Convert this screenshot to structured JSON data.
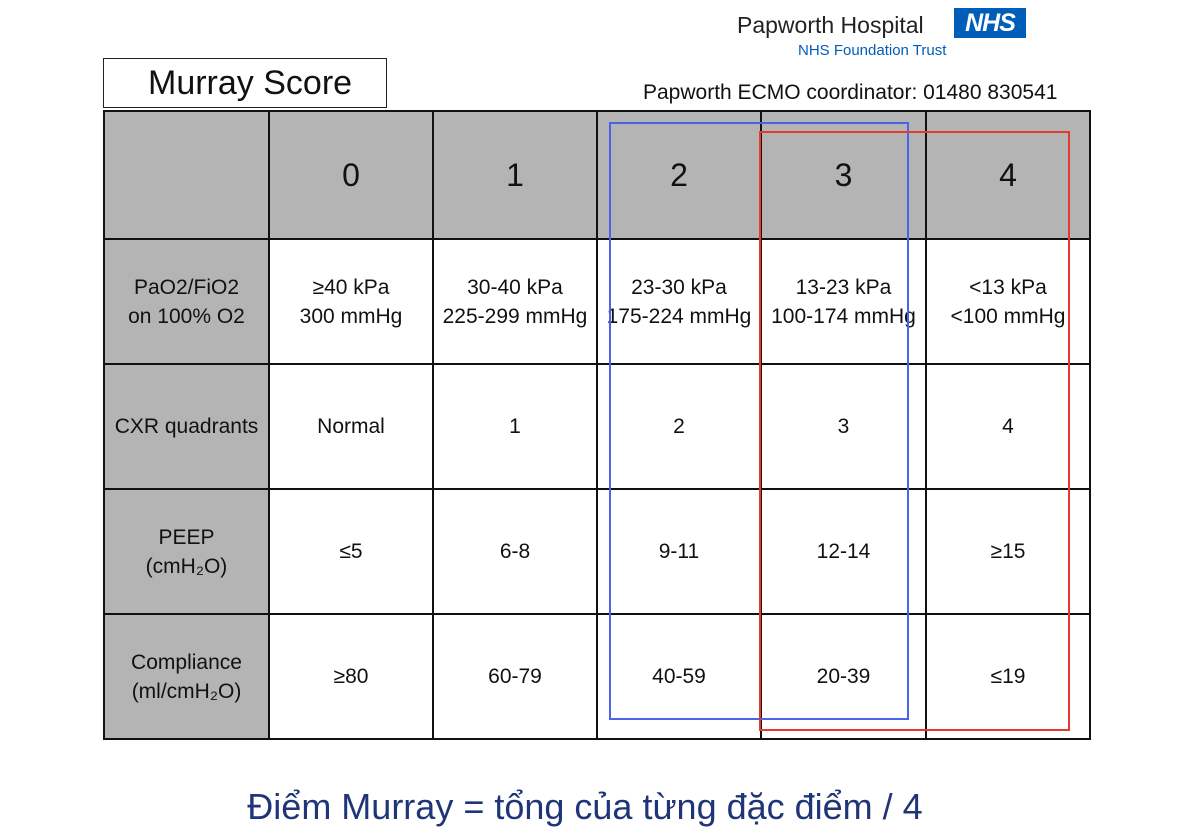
{
  "header": {
    "hospital_name": "Papworth Hospital",
    "nhs_logo": "NHS",
    "trust": "NHS Foundation Trust",
    "coordinator": "Papworth ECMO coordinator: 01480 830541"
  },
  "title": "Murray Score",
  "table": {
    "columns": [
      "0",
      "1",
      "2",
      "3",
      "4"
    ],
    "rows": [
      {
        "label": [
          "PaO2/FiO2",
          "on 100% O2"
        ],
        "cells": [
          [
            "≥40 kPa",
            "300 mmHg"
          ],
          [
            "30-40 kPa",
            "225-299 mmHg"
          ],
          [
            "23-30 kPa",
            "175-224 mmHg"
          ],
          [
            "13-23 kPa",
            "100-174 mmHg"
          ],
          [
            "<13 kPa",
            "<100 mmHg"
          ]
        ]
      },
      {
        "label": [
          "CXR quadrants"
        ],
        "cells": [
          [
            "Normal"
          ],
          [
            "1"
          ],
          [
            "2"
          ],
          [
            "3"
          ],
          [
            "4"
          ]
        ]
      },
      {
        "label": [
          "PEEP",
          "(cmH₂O)"
        ],
        "cells": [
          [
            "≤5"
          ],
          [
            "6-8"
          ],
          [
            "9-11"
          ],
          [
            "12-14"
          ],
          [
            "≥15"
          ]
        ]
      },
      {
        "label": [
          "Compliance",
          "(ml/cmH₂O)"
        ],
        "cells": [
          [
            "≥80"
          ],
          [
            "60-79"
          ],
          [
            "40-59"
          ],
          [
            "20-39"
          ],
          [
            "≤19"
          ]
        ]
      }
    ]
  },
  "highlight_colors": {
    "blue": "#4a63e8",
    "red": "#e53a2e"
  },
  "formula": "Điểm Murray = tổng của từng đặc điểm / 4"
}
